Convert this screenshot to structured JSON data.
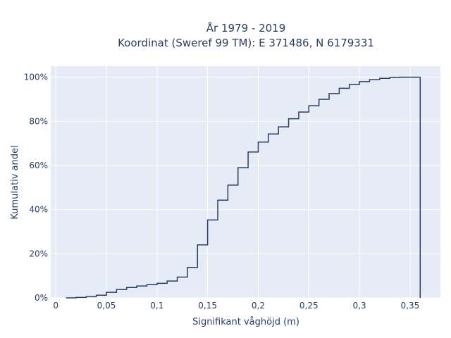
{
  "chart_data": {
    "type": "line",
    "subtype": "cumulative-step",
    "title_line1": "År 1979 - 2019",
    "title_line2": "Koordinat (Sweref 99 TM): E 371486, N 6179331",
    "xlabel": "Signifikant våghöjd (m)",
    "ylabel": "Kumulativ andel",
    "xlim": [
      -0.005,
      0.38
    ],
    "ylim": [
      0,
      1.05
    ],
    "grid": true,
    "legend": "none",
    "x_ticks": [
      {
        "value": 0,
        "label": "0"
      },
      {
        "value": 0.05,
        "label": "0,05"
      },
      {
        "value": 0.1,
        "label": "0,1"
      },
      {
        "value": 0.15,
        "label": "0,15"
      },
      {
        "value": 0.2,
        "label": "0,2"
      },
      {
        "value": 0.25,
        "label": "0,25"
      },
      {
        "value": 0.3,
        "label": "0,3"
      },
      {
        "value": 0.35,
        "label": "0,35"
      }
    ],
    "y_ticks": [
      {
        "value": 0,
        "label": "0%"
      },
      {
        "value": 0.2,
        "label": "20%"
      },
      {
        "value": 0.4,
        "label": "40%"
      },
      {
        "value": 0.6,
        "label": "60%"
      },
      {
        "value": 0.8,
        "label": "80%"
      },
      {
        "value": 1.0,
        "label": "100%"
      }
    ],
    "series": [
      {
        "x": [
          0.01,
          0.02,
          0.03,
          0.04,
          0.05,
          0.06,
          0.07,
          0.08,
          0.09,
          0.1,
          0.11,
          0.12,
          0.13,
          0.14,
          0.15,
          0.16,
          0.17,
          0.18,
          0.19,
          0.2,
          0.21,
          0.22,
          0.23,
          0.24,
          0.25,
          0.26,
          0.27,
          0.28,
          0.29,
          0.3,
          0.31,
          0.32,
          0.33,
          0.34,
          0.35,
          0.36
        ],
        "y": [
          0.0,
          0.002,
          0.005,
          0.012,
          0.025,
          0.038,
          0.047,
          0.054,
          0.06,
          0.066,
          0.076,
          0.094,
          0.138,
          0.24,
          0.353,
          0.443,
          0.511,
          0.59,
          0.661,
          0.706,
          0.743,
          0.775,
          0.812,
          0.842,
          0.871,
          0.9,
          0.926,
          0.95,
          0.967,
          0.98,
          0.989,
          0.995,
          0.999,
          1.0,
          1.0,
          0.0
        ],
        "color": "#2a3f5f"
      }
    ]
  },
  "colors": {
    "plot_bg": "#e5ecf6",
    "grid": "#ffffff",
    "line": "#2a3f5f",
    "text": "#2a3f5f"
  }
}
